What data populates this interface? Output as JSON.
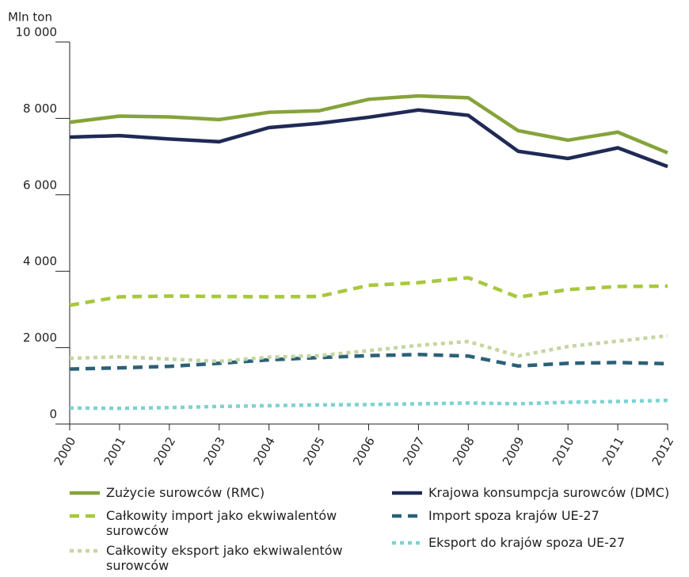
{
  "chart_data": {
    "type": "line",
    "y_label": "Mln ton",
    "categories": [
      "2000",
      "2001",
      "2002",
      "2003",
      "2004",
      "2005",
      "2006",
      "2007",
      "2008",
      "2009",
      "2010",
      "2011",
      "2012"
    ],
    "ylim": [
      0,
      10000
    ],
    "yticks": [
      0,
      {
        "value": 2000,
        "label": "2 000"
      },
      {
        "value": 4000,
        "label": "4 000"
      },
      {
        "value": 6000,
        "label": "6 000"
      },
      {
        "value": 8000,
        "label": "8 000"
      },
      {
        "value": 10000,
        "label": "10 000"
      }
    ],
    "series": [
      {
        "name": "Zużycie surowców (RMC)",
        "color": "#86a33a",
        "style": "solid",
        "values": [
          7900,
          8060,
          8040,
          7970,
          8160,
          8200,
          8500,
          8590,
          8540,
          7680,
          7430,
          7640,
          7100
        ]
      },
      {
        "name": "Krajowa konsumpcja surowców (DMC)",
        "color": "#1f2a55",
        "style": "solid",
        "values": [
          7510,
          7550,
          7460,
          7390,
          7760,
          7870,
          8030,
          8220,
          8080,
          7140,
          6950,
          7230,
          6740
        ]
      },
      {
        "name": "Całkowity import jako ekwiwalentów surowców",
        "color": "#a8c83c",
        "style": "dashed",
        "values": [
          3110,
          3330,
          3350,
          3340,
          3330,
          3340,
          3630,
          3700,
          3830,
          3320,
          3520,
          3600,
          3610
        ]
      },
      {
        "name": "Import spoza krajów UE-27",
        "color": "#2b6178",
        "style": "dashed",
        "values": [
          1440,
          1470,
          1510,
          1590,
          1680,
          1740,
          1790,
          1820,
          1780,
          1520,
          1590,
          1610,
          1580
        ]
      },
      {
        "name": "Całkowity eksport jako ekwiwalentów surowców",
        "color": "#c5d6a0",
        "style": "dotted",
        "values": [
          1720,
          1760,
          1700,
          1640,
          1750,
          1790,
          1920,
          2060,
          2160,
          1780,
          2030,
          2170,
          2310
        ]
      },
      {
        "name": "Eksport do krajów spoza UE-27",
        "color": "#7dd3d0",
        "style": "dotted",
        "values": [
          420,
          410,
          430,
          460,
          480,
          500,
          510,
          530,
          550,
          530,
          570,
          590,
          620
        ]
      }
    ]
  }
}
